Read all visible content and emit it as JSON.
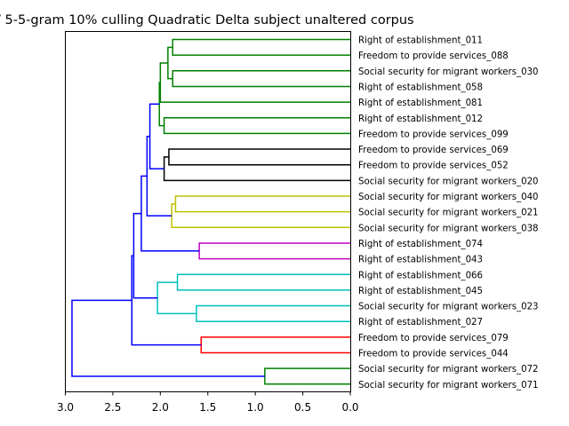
{
  "chart_data": {
    "type": "dendrogram",
    "title": "/ 5-5-gram 10% culling Quadratic Delta subject unaltered corpus",
    "orientation": "left",
    "xlim": [
      3.0,
      0.0
    ],
    "x_ticks": [
      "3.0",
      "2.5",
      "2.0",
      "1.5",
      "1.0",
      "0.5",
      "0.0"
    ],
    "x_tick_values": [
      3.0,
      2.5,
      2.0,
      1.5,
      1.0,
      0.5,
      0.0
    ],
    "leaves": [
      "Right of establishment_011",
      "Freedom to provide services_088",
      "Social security for migrant workers_030",
      "Right of establishment_058",
      "Right of establishment_081",
      "Right of establishment_012",
      "Freedom to provide services_099",
      "Freedom to provide services_069",
      "Freedom to provide services_052",
      "Social security for migrant workers_020",
      "Social security for migrant workers_040",
      "Social security for migrant workers_021",
      "Social security for migrant workers_038",
      "Right of establishment_074",
      "Right of establishment_043",
      "Right of establishment_066",
      "Right of establishment_045",
      "Social security for migrant workers_023",
      "Right of establishment_027",
      "Freedom to provide services_079",
      "Freedom to provide services_044",
      "Social security for migrant workers_072",
      "Social security for migrant workers_071"
    ],
    "colors": {
      "green": "#008000",
      "black": "#000000",
      "olive": "#bfbf00",
      "magenta": "#bf00bf",
      "cyan": "#00bfbf",
      "red": "#ff0000",
      "blue": "#0000ff"
    },
    "merges": [
      {
        "a": "L0",
        "b": "L1",
        "height": 1.87,
        "color": "green"
      },
      {
        "a": "L2",
        "b": "L3",
        "height": 1.87,
        "color": "green"
      },
      {
        "a": "M0",
        "b": "M1",
        "height": 1.92,
        "color": "green"
      },
      {
        "a": "M2",
        "b": "L4",
        "height": 2.0,
        "color": "green"
      },
      {
        "a": "L5",
        "b": "L6",
        "height": 1.96,
        "color": "green"
      },
      {
        "a": "M3",
        "b": "M4",
        "height": 2.01,
        "color": "green"
      },
      {
        "a": "L7",
        "b": "L8",
        "height": 1.91,
        "color": "black"
      },
      {
        "a": "M6",
        "b": "L9",
        "height": 1.96,
        "color": "black"
      },
      {
        "a": "M5",
        "b": "M7",
        "height": 2.11,
        "color": "blue"
      },
      {
        "a": "L10",
        "b": "L11",
        "height": 1.84,
        "color": "olive"
      },
      {
        "a": "M9",
        "b": "L12",
        "height": 1.88,
        "color": "olive"
      },
      {
        "a": "M8",
        "b": "M10",
        "height": 2.14,
        "color": "blue"
      },
      {
        "a": "L13",
        "b": "L14",
        "height": 1.59,
        "color": "magenta"
      },
      {
        "a": "M11",
        "b": "M12",
        "height": 2.2,
        "color": "blue"
      },
      {
        "a": "L15",
        "b": "L16",
        "height": 1.82,
        "color": "cyan"
      },
      {
        "a": "L17",
        "b": "L18",
        "height": 1.62,
        "color": "cyan"
      },
      {
        "a": "M14",
        "b": "M15",
        "height": 2.03,
        "color": "cyan"
      },
      {
        "a": "M13",
        "b": "M16",
        "height": 2.28,
        "color": "blue"
      },
      {
        "a": "L19",
        "b": "L20",
        "height": 1.57,
        "color": "red"
      },
      {
        "a": "M17",
        "b": "M18",
        "height": 2.3,
        "color": "blue"
      },
      {
        "a": "L21",
        "b": "L22",
        "height": 0.9,
        "color": "green"
      },
      {
        "a": "M19",
        "b": "M20",
        "height": 2.93,
        "color": "blue"
      }
    ]
  }
}
